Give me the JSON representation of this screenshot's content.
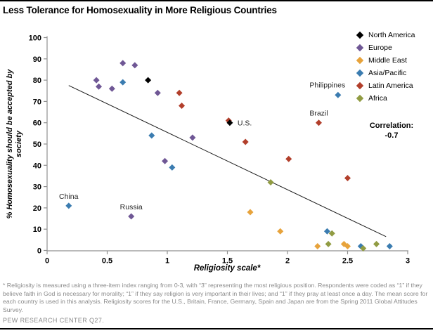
{
  "header": {
    "title": "Less Tolerance for Homosexuality in More Religious Countries"
  },
  "chart_data": {
    "type": "scatter",
    "title": "Less Tolerance for Homosexuality in More Religious Countries",
    "xlabel": "Religiosity scale*",
    "ylabel_line1": "% Homosexuality should be accepted by",
    "ylabel_line2": "society",
    "xlim": [
      0,
      3
    ],
    "ylim": [
      0,
      100
    ],
    "x_ticks": [
      0,
      0.5,
      1,
      1.5,
      2,
      2.5,
      3
    ],
    "y_ticks": [
      0,
      10,
      20,
      30,
      40,
      50,
      60,
      70,
      80,
      90,
      100
    ],
    "grid": false,
    "legend_position": "top-right",
    "correlation_label": "Correlation:",
    "correlation_value": "-0.7",
    "region_colors": {
      "north_america": "#000000",
      "europe": "#6F5795",
      "middle_east": "#E7A33C",
      "asia_pacific": "#3B7CB0",
      "latin_america": "#B23F2B",
      "africa": "#919C43"
    },
    "legend": [
      {
        "key": "north_america",
        "label": "North America"
      },
      {
        "key": "europe",
        "label": "Europe"
      },
      {
        "key": "middle_east",
        "label": "Middle East"
      },
      {
        "key": "asia_pacific",
        "label": "Asia/Pacific"
      },
      {
        "key": "latin_america",
        "label": "Latin America"
      },
      {
        "key": "africa",
        "label": "Africa"
      }
    ],
    "trendline": {
      "x1": 0.18,
      "y1": 77.5,
      "x2": 2.82,
      "y2": 6.5
    },
    "points": [
      {
        "x": 0.41,
        "y": 80,
        "region": "europe"
      },
      {
        "x": 0.43,
        "y": 77,
        "region": "europe"
      },
      {
        "x": 0.54,
        "y": 76,
        "region": "europe"
      },
      {
        "x": 0.63,
        "y": 88,
        "region": "europe"
      },
      {
        "x": 0.73,
        "y": 87,
        "region": "europe"
      },
      {
        "x": 0.92,
        "y": 74,
        "region": "europe"
      },
      {
        "x": 0.98,
        "y": 42,
        "region": "europe"
      },
      {
        "x": 1.21,
        "y": 53,
        "region": "europe"
      },
      {
        "x": 0.7,
        "y": 16,
        "region": "europe",
        "label": "Russia"
      },
      {
        "x": 1.69,
        "y": 18,
        "region": "middle_east"
      },
      {
        "x": 1.94,
        "y": 9,
        "region": "middle_east"
      },
      {
        "x": 2.25,
        "y": 2,
        "region": "middle_east"
      },
      {
        "x": 2.47,
        "y": 3,
        "region": "middle_east"
      },
      {
        "x": 2.5,
        "y": 2,
        "region": "middle_east"
      },
      {
        "x": 0.18,
        "y": 21,
        "region": "asia_pacific",
        "label": "China"
      },
      {
        "x": 0.63,
        "y": 79,
        "region": "asia_pacific"
      },
      {
        "x": 0.87,
        "y": 54,
        "region": "asia_pacific"
      },
      {
        "x": 1.04,
        "y": 39,
        "region": "asia_pacific"
      },
      {
        "x": 2.33,
        "y": 9,
        "region": "asia_pacific"
      },
      {
        "x": 2.42,
        "y": 73,
        "region": "asia_pacific",
        "label": "Philippines"
      },
      {
        "x": 2.61,
        "y": 2,
        "region": "asia_pacific"
      },
      {
        "x": 2.85,
        "y": 2,
        "region": "asia_pacific"
      },
      {
        "x": 1.1,
        "y": 74,
        "region": "latin_america"
      },
      {
        "x": 1.12,
        "y": 68,
        "region": "latin_america"
      },
      {
        "x": 1.51,
        "y": 61,
        "region": "latin_america"
      },
      {
        "x": 1.65,
        "y": 51,
        "region": "latin_america"
      },
      {
        "x": 2.01,
        "y": 43,
        "region": "latin_america"
      },
      {
        "x": 2.26,
        "y": 60,
        "region": "latin_america",
        "label": "Brazil"
      },
      {
        "x": 2.5,
        "y": 34,
        "region": "latin_america"
      },
      {
        "x": 1.86,
        "y": 32,
        "region": "africa"
      },
      {
        "x": 2.34,
        "y": 3,
        "region": "africa"
      },
      {
        "x": 2.37,
        "y": 8,
        "region": "africa"
      },
      {
        "x": 2.63,
        "y": 1,
        "region": "africa"
      },
      {
        "x": 2.74,
        "y": 3,
        "region": "africa"
      },
      {
        "x": 0.84,
        "y": 80,
        "region": "north_america"
      },
      {
        "x": 1.52,
        "y": 60,
        "region": "north_america",
        "label": "U.S."
      }
    ]
  },
  "footnote": "* Religiosity is measured using a three-item index ranging from 0-3, with “3” representing the most religious position. Respondents were coded as “1” if they believe faith in God is necessary for morality; “1” if they say religion is very important in their lives; and “1” if they pray at least once a day. The mean score for each country is used in this analysis. Religiosity scores for the U.S., Britain, France, Germany, Spain and Japan are from the Spring 2011 Global Attitudes Survey.",
  "source": "PEW RESEARCH CENTER Q27."
}
